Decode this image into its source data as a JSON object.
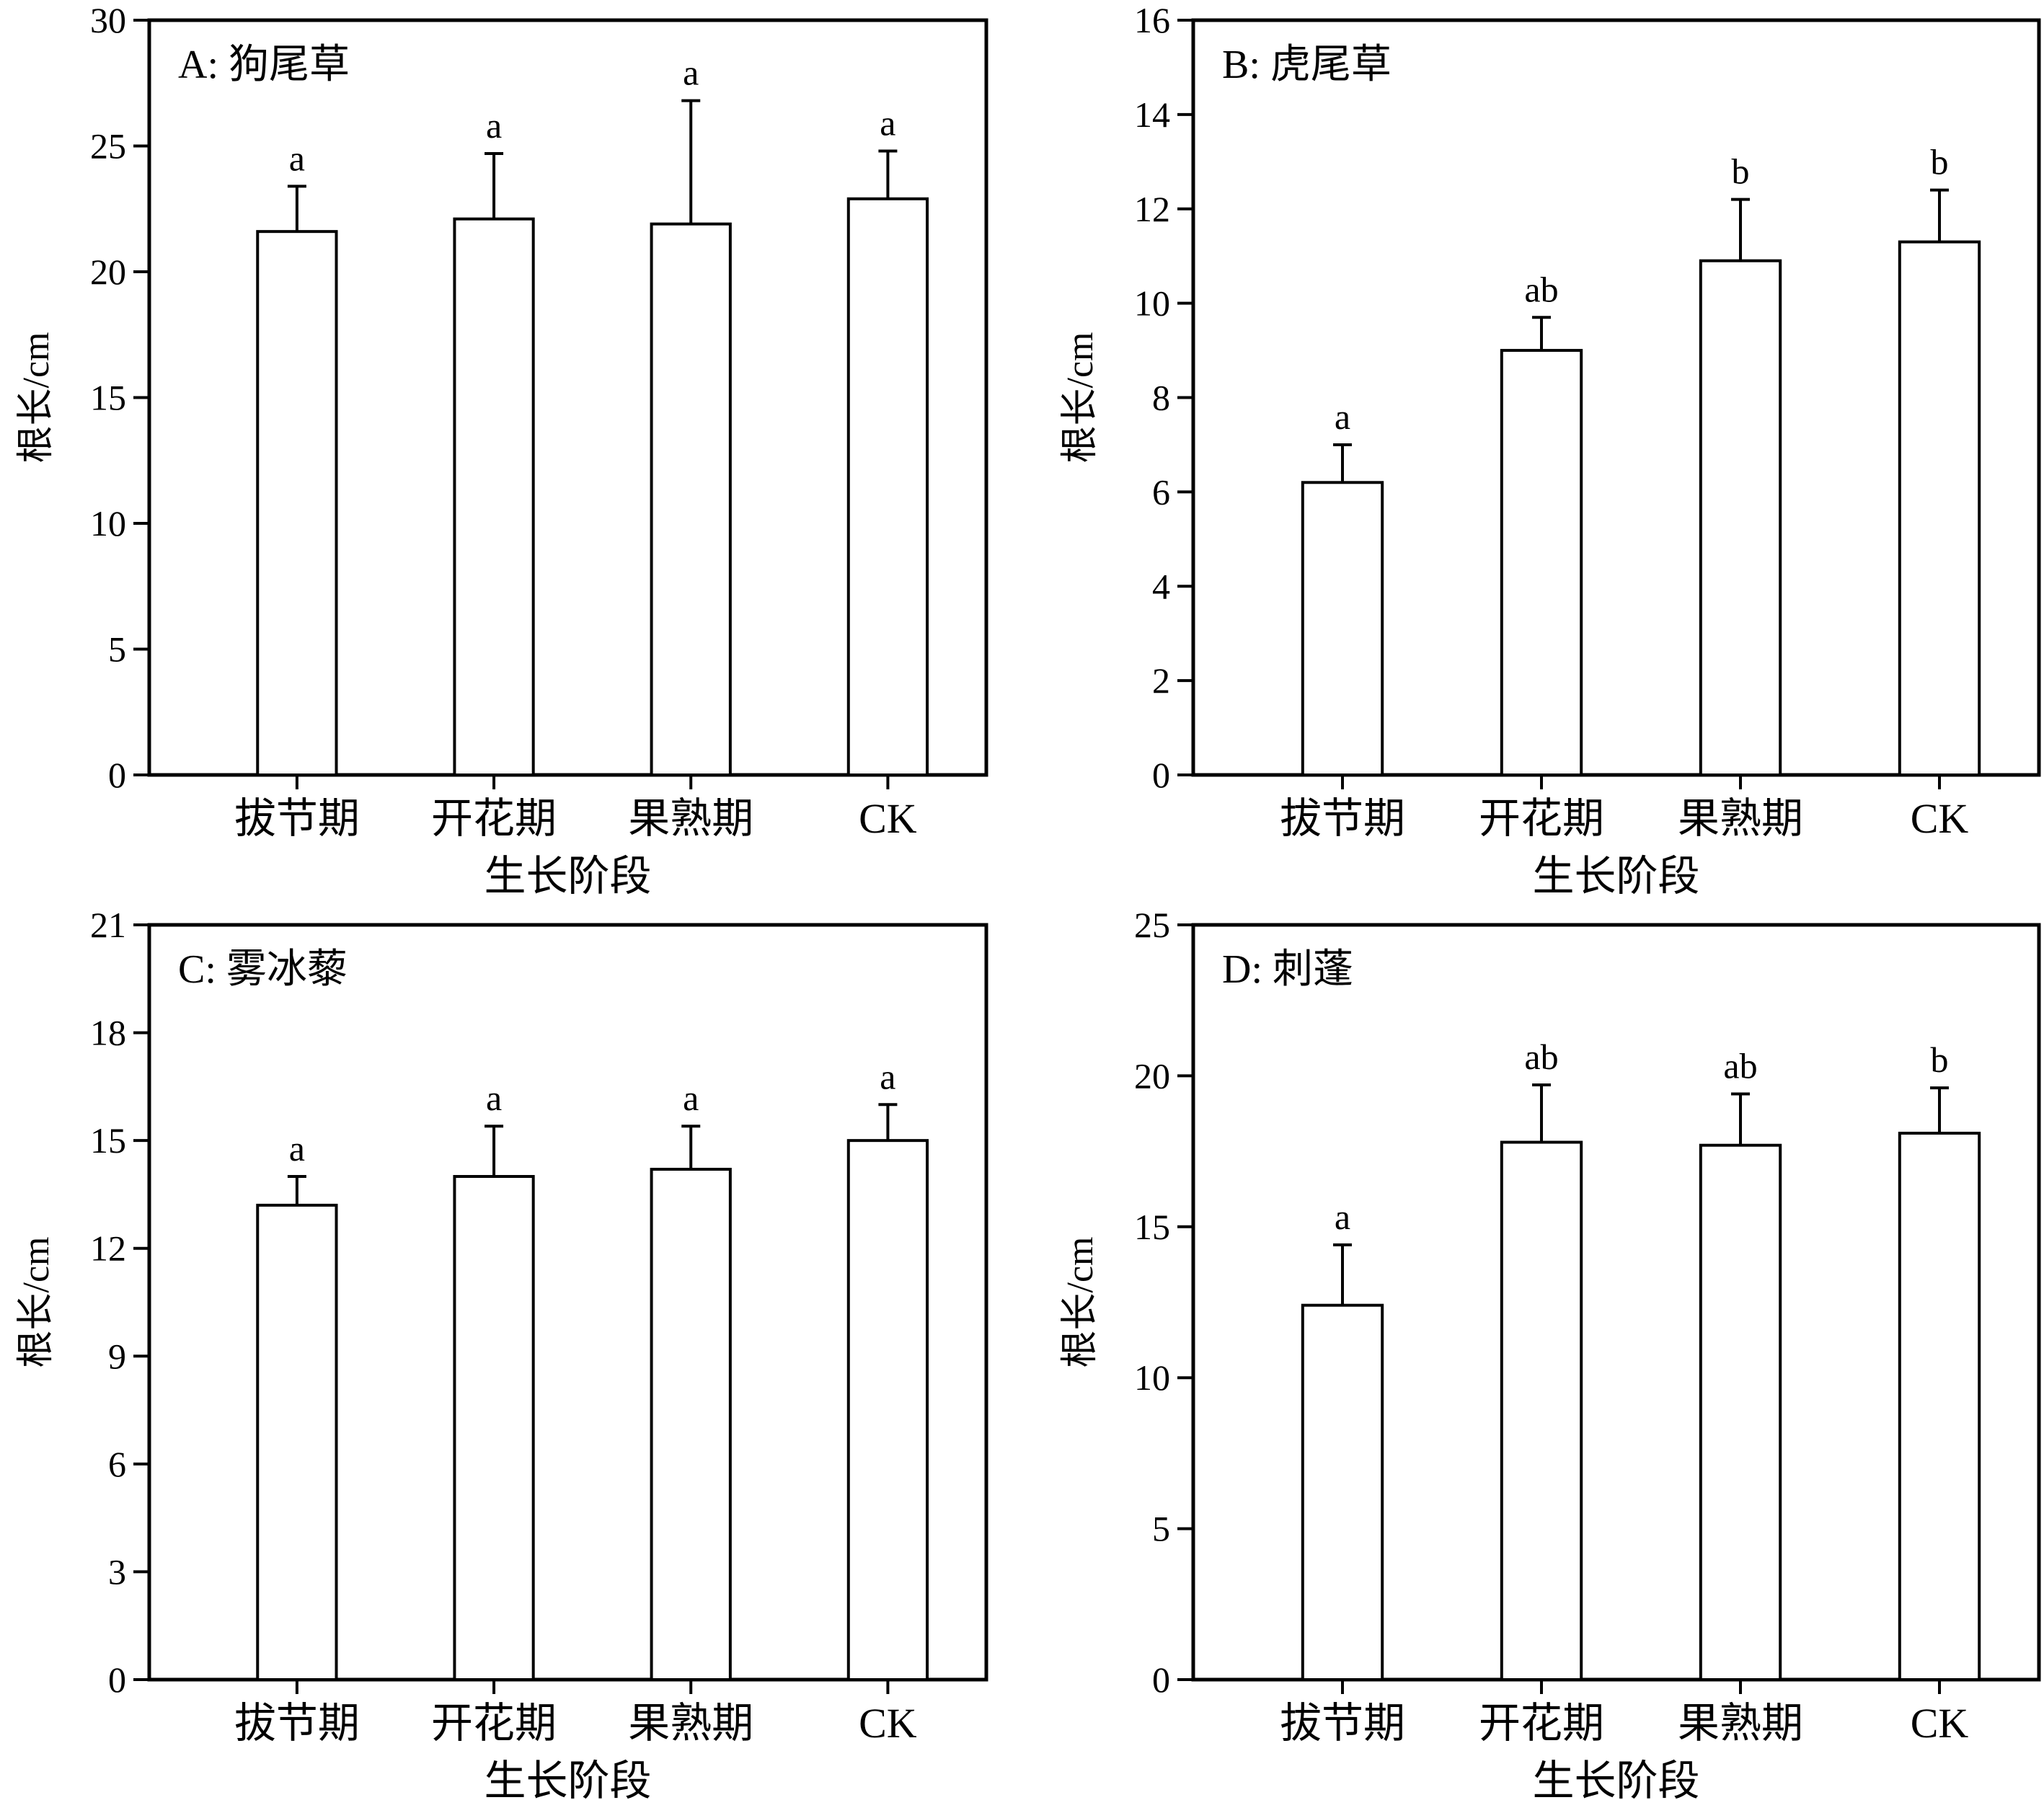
{
  "chart_data": [
    {
      "type": "bar",
      "title": "A: 狗尾草",
      "xlabel": "生长阶段",
      "ylabel": "根长/cm",
      "categories": [
        "拔节期",
        "开花期",
        "果熟期",
        "CK"
      ],
      "values": [
        21.6,
        22.1,
        21.9,
        22.9
      ],
      "errors": [
        1.8,
        2.6,
        4.9,
        1.9
      ],
      "labels": [
        "a",
        "a",
        "a",
        "a"
      ],
      "ylim": [
        0,
        30
      ],
      "yticks": [
        0,
        5,
        10,
        15,
        20,
        25,
        30
      ],
      "grid": false,
      "legend": "none"
    },
    {
      "type": "bar",
      "title": "B: 虎尾草",
      "xlabel": "生长阶段",
      "ylabel": "根长/cm",
      "categories": [
        "拔节期",
        "开花期",
        "果熟期",
        "CK"
      ],
      "values": [
        6.2,
        9.0,
        10.9,
        11.3
      ],
      "errors": [
        0.8,
        0.7,
        1.3,
        1.1
      ],
      "labels": [
        "a",
        "ab",
        "b",
        "b"
      ],
      "ylim": [
        0,
        16
      ],
      "yticks": [
        0,
        2,
        4,
        6,
        8,
        10,
        12,
        14,
        16
      ],
      "grid": false,
      "legend": "none"
    },
    {
      "type": "bar",
      "title": "C: 雾冰藜",
      "xlabel": "生长阶段",
      "ylabel": "根长/cm",
      "categories": [
        "拔节期",
        "开花期",
        "果熟期",
        "CK"
      ],
      "values": [
        13.2,
        14.0,
        14.2,
        15.0
      ],
      "errors": [
        0.8,
        1.4,
        1.2,
        1.0
      ],
      "labels": [
        "a",
        "a",
        "a",
        "a"
      ],
      "ylim": [
        0,
        21
      ],
      "yticks": [
        0,
        3,
        6,
        9,
        12,
        15,
        18,
        21
      ],
      "grid": false,
      "legend": "none"
    },
    {
      "type": "bar",
      "title": "D: 刺蓬",
      "xlabel": "生长阶段",
      "ylabel": "根长/cm",
      "categories": [
        "拔节期",
        "开花期",
        "果熟期",
        "CK"
      ],
      "values": [
        12.4,
        17.8,
        17.7,
        18.1
      ],
      "errors": [
        2.0,
        1.9,
        1.7,
        1.5
      ],
      "labels": [
        "a",
        "ab",
        "ab",
        "b"
      ],
      "ylim": [
        0,
        25
      ],
      "yticks": [
        0,
        5,
        10,
        15,
        20,
        25
      ],
      "grid": false,
      "legend": "none"
    }
  ]
}
